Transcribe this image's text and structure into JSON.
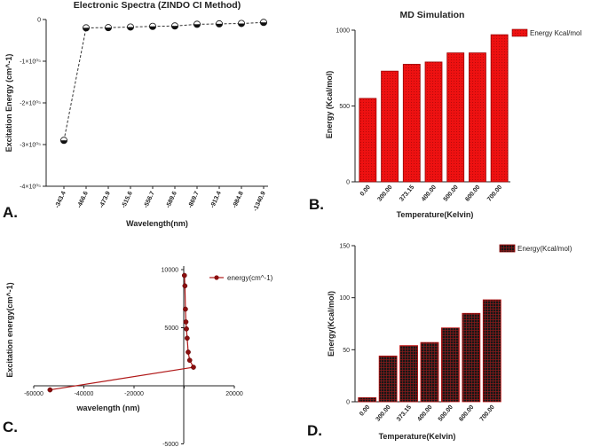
{
  "colors": {
    "bar_red": "#ee1111",
    "dark_red": "#a01414",
    "black": "#111111"
  },
  "chart_data": [
    {
      "panel": "A.",
      "type": "line",
      "title": "Electronic Spectra (ZINDO CI Method)",
      "xlabel": "Wavelength(nm)",
      "ylabel": "Excitation Energy (cm^-1)",
      "categories": [
        "-343.4",
        "-466.6",
        "-473.9",
        "-515.6",
        "-556.7",
        "-589.6",
        "-869.7",
        "-913.4",
        "-984.8",
        "-1340.9"
      ],
      "values": [
        -290000,
        -20000,
        -19500,
        -18000,
        -16500,
        -15500,
        -11500,
        -10500,
        -9500,
        -7000
      ],
      "ylim": [
        -400000,
        0
      ],
      "yticks": [
        0,
        -100000,
        -200000,
        -300000,
        -400000
      ],
      "ytick_labels": [
        "0",
        "-1×10⁰⁵",
        "-2×10⁰⁵",
        "-3×10⁰⁵",
        "-4×10⁰⁵"
      ]
    },
    {
      "panel": "B.",
      "type": "bar",
      "title": "MD Simulation",
      "xlabel": "Temperature(Kelvin)",
      "ylabel": "Energy (Kcal/mol)",
      "legend": "Energy Kcal/mol",
      "categories": [
        "0.00",
        "300.00",
        "373.15",
        "400.00",
        "500.00",
        "600.00",
        "700.00"
      ],
      "values": [
        550,
        730,
        775,
        790,
        850,
        850,
        970
      ],
      "ylim": [
        0,
        1000
      ],
      "yticks": [
        0,
        500,
        1000
      ],
      "ytick_labels": [
        "0",
        "500",
        "1000"
      ]
    },
    {
      "panel": "C.",
      "type": "line",
      "title": "",
      "xlabel": "wavelength (nm)",
      "ylabel": "Excitation energy(cm^-1)",
      "legend": "energy(cm^-1)",
      "points": [
        [
          -53500,
          -350
        ],
        [
          3700,
          1600
        ],
        [
          2200,
          2200
        ],
        [
          1600,
          2900
        ],
        [
          1200,
          4100
        ],
        [
          900,
          4900
        ],
        [
          700,
          5500
        ],
        [
          500,
          6600
        ],
        [
          300,
          8600
        ],
        [
          100,
          9500
        ]
      ],
      "xlim": [
        -60000,
        20000
      ],
      "ylim": [
        -5000,
        10000
      ],
      "xticks": [
        -60000,
        -40000,
        -20000,
        0,
        20000
      ],
      "xtick_labels": [
        "-60000",
        "-40000",
        "-20000",
        "0",
        "20000"
      ],
      "yticks": [
        -5000,
        5000,
        10000
      ],
      "ytick_labels": [
        "-5000",
        "5000",
        "10000"
      ]
    },
    {
      "panel": "D.",
      "type": "bar",
      "title": "",
      "xlabel": "Temperature(Kelvin)",
      "ylabel": "Energy(Kcal/mol)",
      "legend": "Energy(Kcal/mol)",
      "categories": [
        "0.00",
        "300.00",
        "373.15",
        "400.00",
        "500.00",
        "600.00",
        "700.00"
      ],
      "values": [
        4,
        44,
        54,
        57,
        71,
        85,
        98
      ],
      "ylim": [
        0,
        150
      ],
      "yticks": [
        0,
        50,
        100,
        150
      ],
      "ytick_labels": [
        "0",
        "50",
        "100",
        "150"
      ]
    }
  ]
}
